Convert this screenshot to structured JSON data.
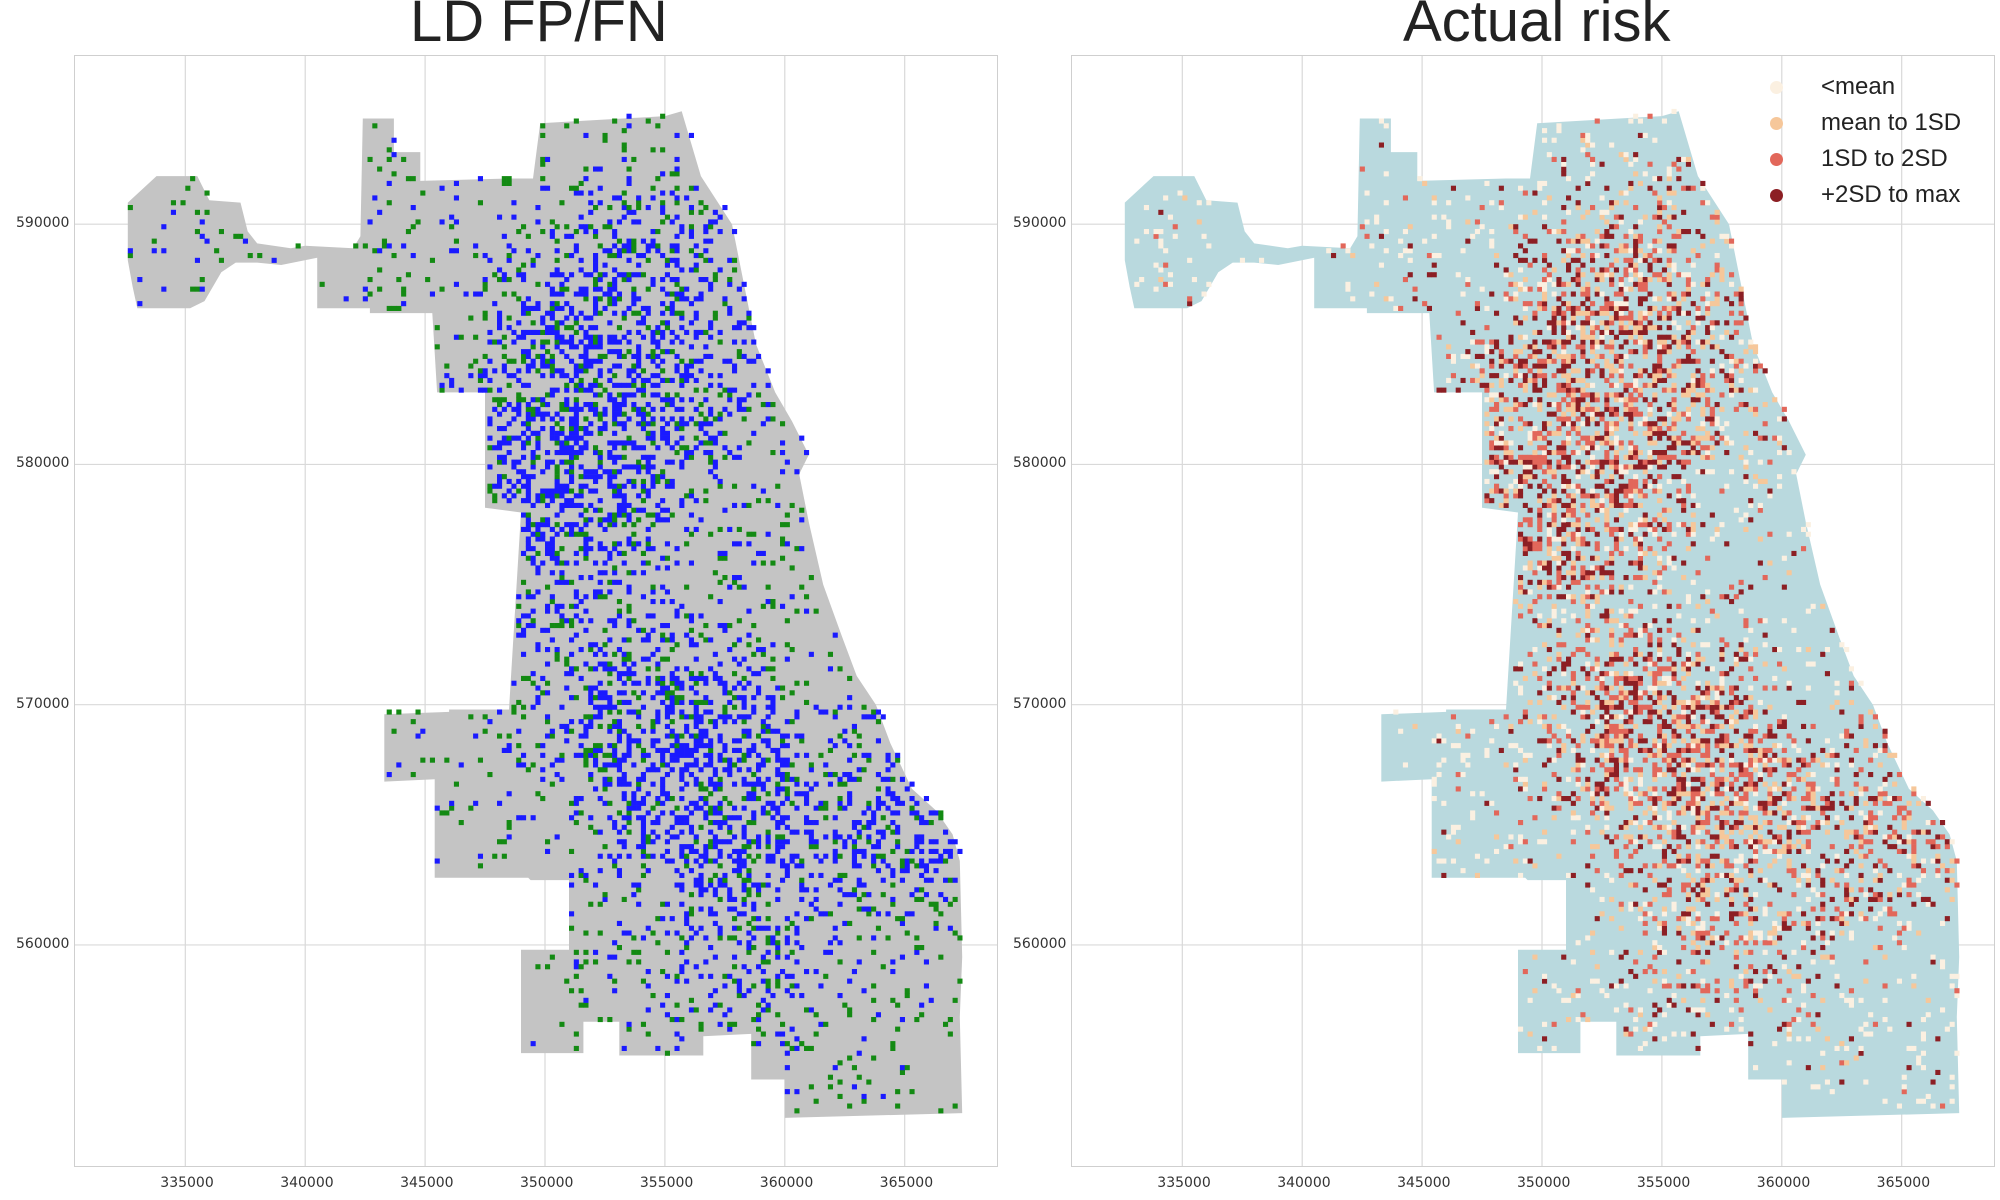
{
  "maps": [
    {
      "title": "LD FP/FN",
      "x_ticks": [
        "335000",
        "340000",
        "345000",
        "350000",
        "355000",
        "360000",
        "365000"
      ],
      "y_ticks": [
        "560000",
        "570000",
        "580000",
        "590000"
      ],
      "colors": {
        "city_fill": "#c4c4c4",
        "false_positive_or_negative_a": "#1a1aff",
        "false_positive_or_negative_b": "#138a13",
        "grid": "#d9d9d9"
      }
    },
    {
      "title": "Actual risk",
      "x_ticks": [
        "335000",
        "340000",
        "345000",
        "350000",
        "355000",
        "360000",
        "365000"
      ],
      "y_ticks": [
        "560000",
        "570000",
        "580000",
        "590000"
      ],
      "colors": {
        "city_fill": "#b9d9de",
        "grid": "#d9d9d9"
      },
      "legend": [
        {
          "label": "<mean",
          "color": "#fbf0e1"
        },
        {
          "label": "mean to 1SD",
          "color": "#f6c79a"
        },
        {
          "label": "1SD to 2SD",
          "color": "#e2675a"
        },
        {
          "label": "+2SD to max",
          "color": "#8c1f24"
        }
      ]
    }
  ]
}
